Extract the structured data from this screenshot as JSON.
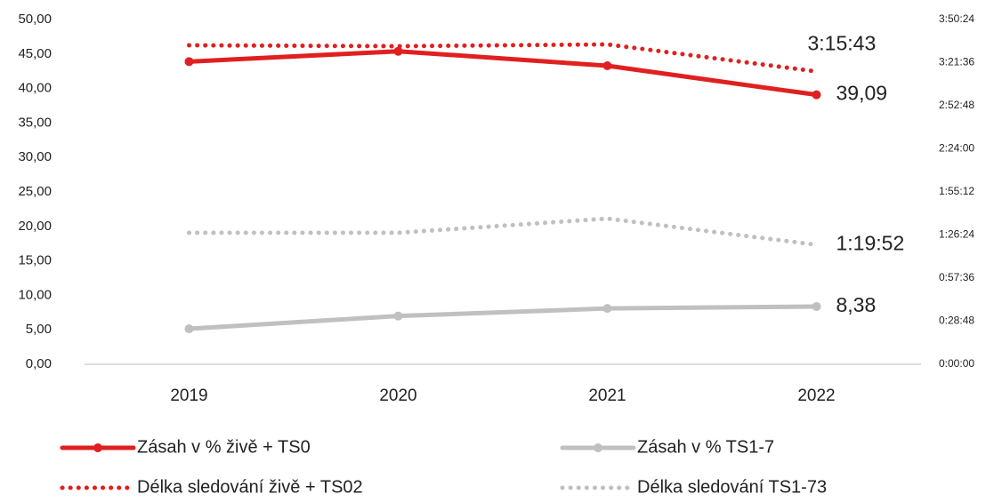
{
  "chart_data": {
    "type": "line",
    "categories": [
      "2019",
      "2020",
      "2021",
      "2022"
    ],
    "ylim": [
      0,
      50
    ],
    "yticks": [
      {
        "value": 0,
        "label": "0,00"
      },
      {
        "value": 5,
        "label": "5,00"
      },
      {
        "value": 10,
        "label": "10,00"
      },
      {
        "value": 15,
        "label": "15,00"
      },
      {
        "value": 20,
        "label": "20,00"
      },
      {
        "value": 25,
        "label": "25,00"
      },
      {
        "value": 30,
        "label": "30,00"
      },
      {
        "value": 35,
        "label": "35,00"
      },
      {
        "value": 40,
        "label": "40,00"
      },
      {
        "value": 45,
        "label": "45,00"
      },
      {
        "value": 50,
        "label": "50,00"
      }
    ],
    "y2lim": [
      0,
      13824
    ],
    "y2ticks": [
      {
        "value": 0,
        "label": "0:00:00"
      },
      {
        "value": 1728,
        "label": "0:28:48"
      },
      {
        "value": 3456,
        "label": "0:57:36"
      },
      {
        "value": 5184,
        "label": "1:26:24"
      },
      {
        "value": 6912,
        "label": "1:55:12"
      },
      {
        "value": 8640,
        "label": "2:24:00"
      },
      {
        "value": 10368,
        "label": "2:52:48"
      },
      {
        "value": 12096,
        "label": "3:21:36"
      },
      {
        "value": 13824,
        "label": "3:50:24"
      }
    ],
    "series": [
      {
        "name": "Zásah v % živě + TS0",
        "color": "#e02020",
        "style": "solid",
        "values": [
          43.9,
          45.4,
          43.3,
          39.09
        ],
        "value_labels": [
          null,
          null,
          null,
          "39,09"
        ]
      },
      {
        "name": "Zásah v % TS1-7",
        "color": "#c0c0c0",
        "style": "solid",
        "values": [
          5.15,
          7.0,
          8.1,
          8.38
        ],
        "value_labels": [
          null,
          null,
          null,
          "8,38"
        ]
      },
      {
        "name": "Délka sledování živě + TS02",
        "color": "#e02020",
        "style": "dotted",
        "axis": "y2",
        "values": [
          12791,
          12755,
          12827,
          11743
        ],
        "value_labels": [
          null,
          null,
          null,
          "3:15:43"
        ]
      },
      {
        "name": "Délka sledování TS1-73",
        "color": "#c0c0c0",
        "style": "dotted",
        "axis": "y2",
        "values": [
          5273,
          5273,
          5843,
          4792
        ],
        "value_labels": [
          null,
          null,
          null,
          "1:19:52"
        ]
      }
    ]
  }
}
